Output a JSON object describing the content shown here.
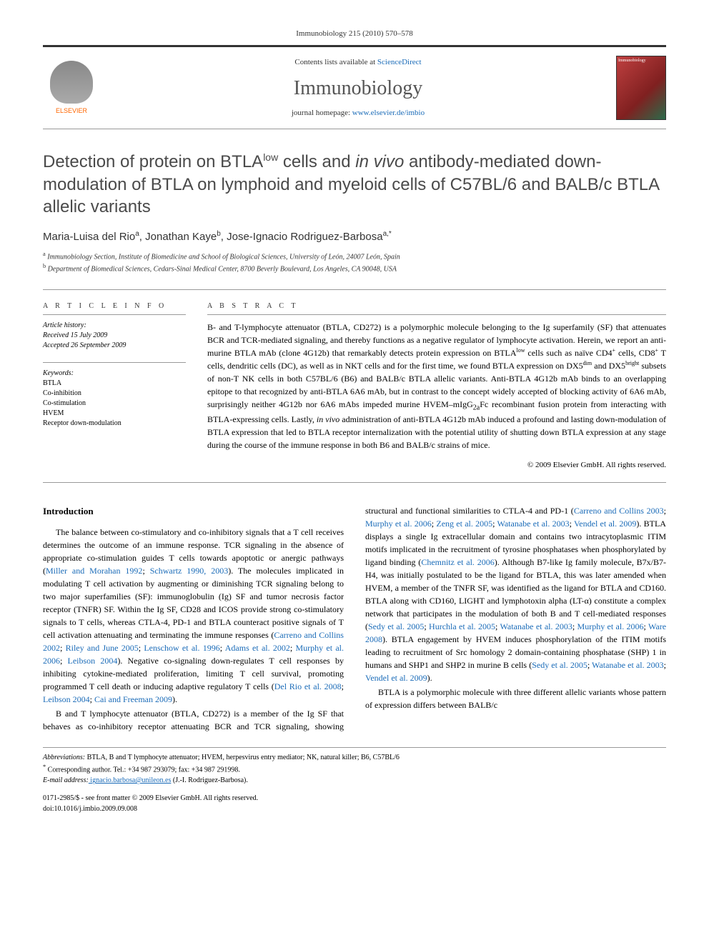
{
  "header": {
    "citation": "Immunobiology 215 (2010) 570–578",
    "contents_text": "Contents lists available at ",
    "contents_link": "ScienceDirect",
    "journal_name": "Immunobiology",
    "homepage_text": "journal homepage: ",
    "homepage_link": "www.elsevier.de/imbio",
    "elsevier_label": "ELSEVIER",
    "cover_label": "Immunobiology"
  },
  "title": {
    "line1": "Detection of protein on BTLA",
    "sup1": "low",
    "line2": " cells and ",
    "em1": "in vivo",
    "line3": " antibody-mediated down-modulation of BTLA on lymphoid and myeloid cells of C57BL/6 and BALB/c BTLA allelic variants"
  },
  "authors": {
    "a1_name": "Maria-Luisa del Rio",
    "a1_aff": "a",
    "a2_name": "Jonathan Kaye",
    "a2_aff": "b",
    "a3_name": "Jose-Ignacio Rodriguez-Barbosa",
    "a3_aff": "a,",
    "a3_corr": "*"
  },
  "affiliations": {
    "aff_a_sup": "a",
    "aff_a": " Immunobiology Section, Institute of Biomedicine and School of Biological Sciences, University of León, 24007 León, Spain",
    "aff_b_sup": "b",
    "aff_b": " Department of Biomedical Sciences, Cedars-Sinai Medical Center, 8700 Beverly Boulevard, Los Angeles, CA 90048, USA"
  },
  "article_info": {
    "heading": "A R T I C L E  I N F O",
    "history_label": "Article history:",
    "received": "Received 15 July 2009",
    "accepted": "Accepted 26 September 2009",
    "keywords_label": "Keywords:",
    "kw1": "BTLA",
    "kw2": "Co-inhibition",
    "kw3": "Co-stimulation",
    "kw4": "HVEM",
    "kw5": "Receptor down-modulation"
  },
  "abstract": {
    "heading": "A B S T R A C T",
    "text_p1": "B- and T-lymphocyte attenuator (BTLA, CD272) is a polymorphic molecule belonging to the Ig superfamily (SF) that attenuates BCR and TCR-mediated signaling, and thereby functions as a negative regulator of lymphocyte activation. Herein, we report an anti-murine BTLA mAb (clone 4G12b) that remarkably detects protein expression on BTLA",
    "sup1": "low",
    "text_p2": " cells such as naïve CD4",
    "sup2": "+",
    "text_p3": " cells, CD8",
    "sup3": "+",
    "text_p4": " T cells, dendritic cells (DC), as well as in NKT cells and for the first time, we found BTLA expression on DX5",
    "sup4": "dim",
    "text_p5": " and DX5",
    "sup5": "bright",
    "text_p6": " subsets of non-T NK cells in both C57BL/6 (B6) and BALB/c BTLA allelic variants. Anti-BTLA 4G12b mAb binds to an overlapping epitope to that recognized by anti-BTLA 6A6 mAb, but in contrast to the concept widely accepted of blocking activity of 6A6 mAb, surprisingly neither 4G12b nor 6A6 mAbs impeded murine HVEM–mIgG",
    "sup6": "2a",
    "text_p7": "Fc recombinant fusion protein from interacting with BTLA-expressing cells. Lastly, ",
    "em1": "in vivo",
    "text_p8": " administration of anti-BTLA 4G12b mAb induced a profound and lasting down-modulation of BTLA expression that led to BTLA receptor internalization with the potential utility of shutting down BTLA expression at any stage during the course of the immune response in both B6 and BALB/c strains of mice.",
    "copyright": "© 2009 Elsevier GmbH. All rights reserved."
  },
  "body": {
    "intro_heading": "Introduction",
    "p1_a": "The balance between co-stimulatory and co-inhibitory signals that a T cell receives determines the outcome of an immune response. TCR signaling in the absence of appropriate co-stimulation guides T cells towards apoptotic or anergic pathways (",
    "p1_c1": "Miller and Morahan 1992",
    "p1_b": "; ",
    "p1_c2": "Schwartz 1990, 2003",
    "p1_c": "). The molecules implicated in modulating T cell activation by augmenting or diminishing TCR signaling belong to two major superfamilies (SF): immunoglobulin (Ig) SF and tumor necrosis factor receptor (TNFR) SF. Within the Ig SF, CD28 and ICOS provide strong co-stimulatory signals to T cells, whereas CTLA-4, PD-1 and BTLA counteract positive signals of T cell activation attenuating and terminating the immune responses (",
    "p1_c3": "Carreno and Collins 2002",
    "p1_d": "; ",
    "p1_c4": "Riley and June 2005",
    "p1_e": "; ",
    "p1_c5": "Lenschow et al. 1996",
    "p1_f": "; ",
    "p1_c6": "Adams et al. 2002",
    "p1_g": "; ",
    "p1_c7": "Murphy et al. 2006",
    "p1_h": "; ",
    "p1_c8": "Leibson 2004",
    "p1_i": "). Negative co-signaling down-regulates T cell responses by inhibiting cytokine-mediated proliferation, limiting T cell survival, promoting programmed T cell death or inducing adaptive regulatory T cells (",
    "p1_c9": "Del Rio et al. 2008",
    "p1_j": "; ",
    "p1_c10": "Leibson 2004",
    "p1_k": "; ",
    "p1_c11": "Cai and Freeman 2009",
    "p1_l": ").",
    "p2_a": "B and T lymphocyte attenuator (BTLA, CD272) is a member of the Ig SF that behaves as co-inhibitory receptor attenuating BCR and TCR signaling, showing structural and functional similarities to CTLA-4 and PD-1 (",
    "p2_c1": "Carreno and Collins 2003",
    "p2_b": "; ",
    "p2_c2": "Murphy et al. 2006",
    "p2_c": "; ",
    "p2_c3": "Zeng et al. 2005",
    "p2_d": "; ",
    "p2_c4": "Watanabe et al. 2003",
    "p2_e": "; ",
    "p2_c5": "Vendel et al. 2009",
    "p2_f": "). BTLA displays a single Ig extracellular domain and contains two intracytoplasmic ITIM motifs implicated in the recruitment of tyrosine phosphatases when phosphorylated by ligand binding (",
    "p2_c6": "Chemnitz et al. 2006",
    "p2_g": "). Although B7-like Ig family molecule, B7x/B7-H4, was initially postulated to be the ligand for BTLA, this was later amended when HVEM, a member of the TNFR SF, was identified as the ligand for BTLA and CD160. BTLA along with CD160, LIGHT and lymphotoxin alpha (LT-α) constitute a complex network that participates in the modulation of both B and T cell-mediated responses (",
    "p2_c7": "Sedy et al. 2005",
    "p2_h": "; ",
    "p2_c8": "Hurchla et al. 2005",
    "p2_i": "; ",
    "p2_c9": "Watanabe et al. 2003",
    "p2_j": "; ",
    "p2_c10": "Murphy et al. 2006",
    "p2_k": "; ",
    "p2_c11": "Ware 2008",
    "p2_l": "). BTLA engagement by HVEM induces phosphorylation of the ITIM motifs leading to recruitment of Src homology 2 domain-containing phosphatase (SHP) 1 in humans and SHP1 and SHP2 in murine B cells (",
    "p2_c12": "Sedy et al. 2005",
    "p2_m": "; ",
    "p2_c13": "Watanabe et al. 2003",
    "p2_n": "; ",
    "p2_c14": "Vendel et al. 2009",
    "p2_o": ").",
    "p3_a": "BTLA is a polymorphic molecule with three different allelic variants whose pattern of expression differs between BALB/c"
  },
  "footnotes": {
    "abbrev_label": "Abbreviations:",
    "abbrev_text": " BTLA, B and T lymphocyte attenuator; HVEM, herpesvirus entry mediator; NK, natural killer; B6, C57BL/6",
    "corr_symbol": "*",
    "corr_text": " Corresponding author. Tel.: +34 987 293079; fax: +34 987 291998.",
    "email_label": "E-mail address:",
    "email_value": " ignacio.barbosa@unileon.es",
    "email_suffix": " (J.-I. Rodriguez-Barbosa).",
    "issn_line": "0171-2985/$ - see front matter © 2009 Elsevier GmbH. All rights reserved.",
    "doi_line": "doi:10.1016/j.imbio.2009.09.008"
  },
  "colors": {
    "link": "#1a6bb8",
    "elsevier_orange": "#ff6600",
    "title_gray": "#4a4a4a",
    "rule": "#999999"
  }
}
